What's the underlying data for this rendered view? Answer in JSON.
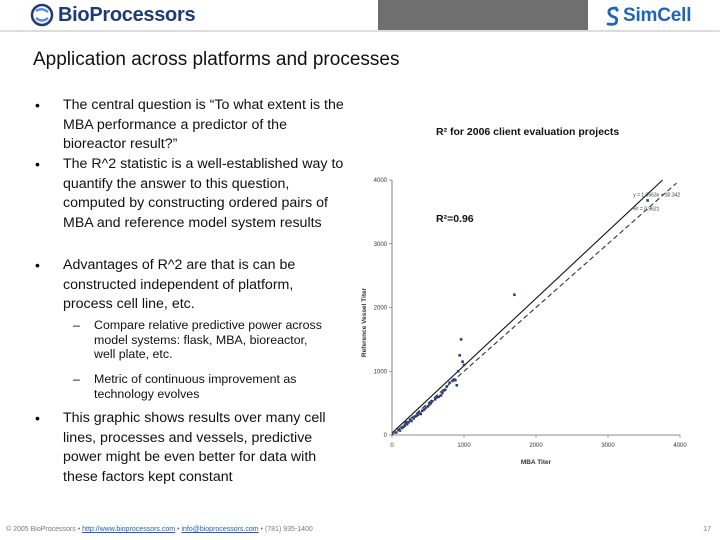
{
  "header": {
    "left_logo": "BioProcessors",
    "right_logo": "SimCell"
  },
  "title": "Application across platforms and processes",
  "bullets": [
    "The central question is “To what extent is the MBA performance a predictor of the bioreactor result?”",
    "The R^2 statistic is a well-established way to quantify the answer to this question, computed by constructing ordered pairs of MBA and reference model system results",
    "Advantages of R^2 are that is can be constructed independent of platform, process cell line, etc."
  ],
  "sub_bullets": [
    "Compare relative predictive power across model systems: flask, MBA, bioreactor, well plate, etc.",
    "Metric of continuous improvement as technology evolves"
  ],
  "last_bullet": "This graphic shows results over many cell lines, processes and vessels, predictive power might be even better for data with these factors kept constant",
  "chart_caption": "R² for 2006 client evaluation projects",
  "r2_label": "R²=0.96",
  "chart_data": {
    "type": "scatter",
    "xlabel": "MBA Titer",
    "ylabel": "Reference Vessel Titer",
    "xlim": [
      0,
      4000
    ],
    "ylim": [
      0,
      4000
    ],
    "x_ticks": [
      "0",
      "1000",
      "2000",
      "3000",
      "4000"
    ],
    "y_ticks": [
      "0",
      "1000",
      "2000",
      "3000",
      "4000"
    ],
    "equation": "y = 1.0563x + 30.342",
    "equation_r2": "R² = 0.9621",
    "grid": false,
    "fit_line": {
      "slope": 1.0563,
      "intercept": 30.342,
      "style": "solid"
    },
    "identity_line": {
      "style": "dashed"
    },
    "points": [
      [
        60,
        40
      ],
      [
        90,
        80
      ],
      [
        110,
        70
      ],
      [
        140,
        110
      ],
      [
        160,
        130
      ],
      [
        180,
        150
      ],
      [
        190,
        200
      ],
      [
        210,
        170
      ],
      [
        230,
        200
      ],
      [
        250,
        240
      ],
      [
        270,
        220
      ],
      [
        300,
        260
      ],
      [
        320,
        290
      ],
      [
        340,
        300
      ],
      [
        360,
        320
      ],
      [
        380,
        350
      ],
      [
        400,
        330
      ],
      [
        420,
        380
      ],
      [
        450,
        400
      ],
      [
        470,
        430
      ],
      [
        500,
        450
      ],
      [
        520,
        480
      ],
      [
        540,
        500
      ],
      [
        560,
        530
      ],
      [
        600,
        560
      ],
      [
        620,
        590
      ],
      [
        650,
        600
      ],
      [
        680,
        620
      ],
      [
        700,
        660
      ],
      [
        720,
        700
      ],
      [
        740,
        710
      ],
      [
        760,
        760
      ],
      [
        800,
        820
      ],
      [
        840,
        850
      ],
      [
        860,
        870
      ],
      [
        880,
        860
      ],
      [
        900,
        780
      ],
      [
        920,
        1000
      ],
      [
        940,
        1250
      ],
      [
        960,
        1500
      ],
      [
        980,
        1150
      ],
      [
        1000,
        1100
      ],
      [
        1700,
        2200
      ],
      [
        3550,
        3680
      ]
    ]
  },
  "footer": {
    "copyright": "© 2005 BioProcessors •",
    "link1": "http://www.bioprocessors.com",
    "sep1": "•",
    "link2": "info@bioprocessors.com",
    "tail": "• (781) 935-1400",
    "page": "17"
  }
}
